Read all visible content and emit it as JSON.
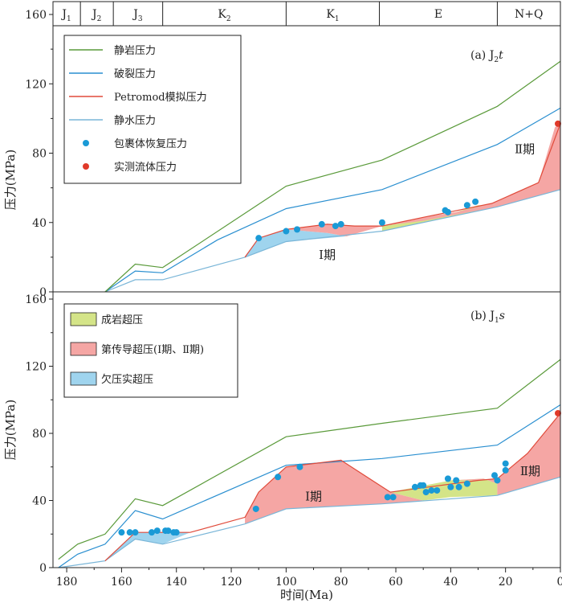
{
  "chart_data": {
    "type": "line",
    "x_axis": {
      "label": "时间(Ma)",
      "range": [
        185,
        0
      ],
      "ticks": [
        "180",
        "160",
        "140",
        "120",
        "100",
        "80",
        "60",
        "40",
        "20",
        "0"
      ],
      "reversed": true
    },
    "stratigraphy": [
      {
        "label": "J",
        "sub": "1",
        "from": 185,
        "to": 175
      },
      {
        "label": "J",
        "sub": "2",
        "from": 175,
        "to": 163
      },
      {
        "label": "J",
        "sub": "3",
        "from": 163,
        "to": 145
      },
      {
        "label": "K",
        "sub": "2",
        "from": 145,
        "to": 100
      },
      {
        "label": "K",
        "sub": "1",
        "from": 100,
        "to": 66
      },
      {
        "label": "E",
        "sub": "",
        "from": 66,
        "to": 23
      },
      {
        "label": "N+Q",
        "sub": "",
        "from": 23,
        "to": 0
      }
    ],
    "legend_top": [
      {
        "label": "静岩压力",
        "color": "#5a9a3a",
        "kind": "line"
      },
      {
        "label": "破裂压力",
        "color": "#2a8fd0",
        "kind": "line"
      },
      {
        "label": "Petromod模拟压力",
        "color": "#e04a3a",
        "kind": "line"
      },
      {
        "label": "静水压力",
        "color": "#7ab6d8",
        "kind": "line"
      },
      {
        "label": "包裹体恢复压力",
        "color": "#1a9ad6",
        "kind": "dot"
      },
      {
        "label": "实测流体压力",
        "color": "#e03a2a",
        "kind": "dot"
      }
    ],
    "legend_bottom": [
      {
        "label": "成岩超压",
        "color": "#d4e488"
      },
      {
        "label": "第传导超压(Ⅰ期、Ⅱ期)",
        "color": "#f5a6a4"
      },
      {
        "label": "欠压实超压",
        "color": "#9fd4ee"
      }
    ],
    "panels": [
      {
        "title": "(a) J",
        "title_sub": "2",
        "title_suffix": "t",
        "ylabel": "压力(MPa)",
        "ylim": [
          0,
          160
        ],
        "yticks": [
          "0",
          "40",
          "80",
          "120",
          "160"
        ],
        "region_labels": [
          {
            "text": "Ⅰ期",
            "x": 85,
            "y": 19
          },
          {
            "text": "Ⅱ期",
            "x": 13,
            "y": 80
          }
        ],
        "lithostatic": [
          [
            166,
            0
          ],
          [
            155,
            16
          ],
          [
            145,
            14
          ],
          [
            100,
            61
          ],
          [
            65,
            76
          ],
          [
            23,
            107
          ],
          [
            0,
            133
          ]
        ],
        "fracture": [
          [
            166,
            0
          ],
          [
            155,
            12
          ],
          [
            145,
            11
          ],
          [
            125,
            30
          ],
          [
            100,
            48
          ],
          [
            65,
            59
          ],
          [
            23,
            85
          ],
          [
            0,
            106
          ]
        ],
        "hydrostatic": [
          [
            166,
            0
          ],
          [
            155,
            7
          ],
          [
            145,
            7
          ],
          [
            115,
            20
          ],
          [
            100,
            29
          ],
          [
            65,
            35
          ],
          [
            23,
            49
          ],
          [
            0,
            59
          ]
        ],
        "petromod": [
          [
            115,
            20
          ],
          [
            110,
            31
          ],
          [
            100,
            36
          ],
          [
            85,
            39
          ],
          [
            75,
            38
          ],
          [
            65,
            38
          ],
          [
            50,
            43
          ],
          [
            25,
            51
          ],
          [
            8,
            63
          ],
          [
            0,
            97
          ]
        ],
        "areas": [
          {
            "kind": "undercompaction",
            "points": [
              [
                115,
                20
              ],
              [
                110,
                31
              ],
              [
                100,
                36
              ],
              [
                85,
                34
              ],
              [
                78,
                32
              ],
              [
                100,
                29
              ]
            ]
          },
          {
            "kind": "transmission",
            "points": [
              [
                110,
                31
              ],
              [
                100,
                36
              ],
              [
                85,
                39
              ],
              [
                75,
                38
              ],
              [
                65,
                38
              ],
              [
                78,
                32
              ],
              [
                85,
                34
              ],
              [
                100,
                36
              ]
            ]
          },
          {
            "kind": "diagenetic",
            "points": [
              [
                65,
                35
              ],
              [
                65,
                38
              ],
              [
                50,
                43
              ],
              [
                38,
                46
              ],
              [
                30,
                50
              ],
              [
                23,
                50
              ],
              [
                23,
                49
              ]
            ]
          },
          {
            "kind": "transmission",
            "points": [
              [
                65,
                38
              ],
              [
                50,
                43
              ],
              [
                38,
                46
              ],
              [
                30,
                49
              ],
              [
                25,
                51
              ],
              [
                23,
                49
              ],
              [
                50,
                41
              ]
            ]
          },
          {
            "kind": "transmission",
            "points": [
              [
                23,
                49
              ],
              [
                25,
                51
              ],
              [
                8,
                63
              ],
              [
                2,
                95
              ],
              [
                0,
                97
              ],
              [
                0,
                59
              ]
            ]
          }
        ],
        "inclusion": [
          [
            110,
            31
          ],
          [
            100,
            35
          ],
          [
            96,
            36
          ],
          [
            87,
            39
          ],
          [
            82,
            38
          ],
          [
            80,
            39
          ],
          [
            65,
            40
          ],
          [
            42,
            47
          ],
          [
            41,
            46
          ],
          [
            34,
            50
          ],
          [
            31,
            52
          ]
        ],
        "measured": [
          [
            0,
            97
          ]
        ]
      },
      {
        "title": "(b) J",
        "title_sub": "1",
        "title_suffix": "s",
        "ylabel": "压力(MPa)",
        "ylim": [
          0,
          160
        ],
        "yticks": [
          "0",
          "40",
          "80",
          "120",
          "160"
        ],
        "region_labels": [
          {
            "text": "Ⅰ期",
            "x": 90,
            "y": 40
          },
          {
            "text": "Ⅱ期",
            "x": 11,
            "y": 55
          }
        ],
        "lithostatic": [
          [
            183,
            5
          ],
          [
            176,
            14
          ],
          [
            166,
            20
          ],
          [
            155,
            41
          ],
          [
            145,
            37
          ],
          [
            100,
            78
          ],
          [
            65,
            86
          ],
          [
            23,
            95
          ],
          [
            0,
            124
          ]
        ],
        "fracture": [
          [
            183,
            0
          ],
          [
            176,
            8
          ],
          [
            166,
            14
          ],
          [
            155,
            34
          ],
          [
            145,
            29
          ],
          [
            100,
            61
          ],
          [
            65,
            65
          ],
          [
            23,
            73
          ],
          [
            0,
            97
          ]
        ],
        "hydrostatic": [
          [
            183,
            0
          ],
          [
            166,
            4
          ],
          [
            155,
            17
          ],
          [
            145,
            14
          ],
          [
            115,
            26
          ],
          [
            100,
            35
          ],
          [
            65,
            38
          ],
          [
            23,
            43
          ],
          [
            0,
            54
          ]
        ],
        "petromod": [
          [
            166,
            4
          ],
          [
            155,
            21
          ],
          [
            145,
            21
          ],
          [
            135,
            21
          ],
          [
            115,
            30
          ],
          [
            110,
            45
          ],
          [
            100,
            60
          ],
          [
            80,
            64
          ],
          [
            62,
            45
          ],
          [
            30,
            52
          ],
          [
            23,
            53
          ],
          [
            12,
            68
          ],
          [
            0,
            92
          ]
        ],
        "areas": [
          {
            "kind": "undercompaction",
            "points": [
              [
                166,
                4
              ],
              [
                155,
                21
              ],
              [
                145,
                21
              ],
              [
                135,
                21
              ],
              [
                145,
                14
              ],
              [
                155,
                17
              ]
            ]
          },
          {
            "kind": "transmission",
            "points": [
              [
                115,
                26
              ],
              [
                115,
                30
              ],
              [
                110,
                45
              ],
              [
                100,
                60
              ],
              [
                80,
                64
              ],
              [
                62,
                45
              ],
              [
                50,
                40
              ],
              [
                65,
                38
              ],
              [
                100,
                35
              ]
            ]
          },
          {
            "kind": "diagenetic",
            "points": [
              [
                62,
                45
              ],
              [
                40,
                52
              ],
              [
                28,
                53
              ],
              [
                23,
                50
              ],
              [
                23,
                43
              ],
              [
                40,
                42
              ],
              [
                50,
                40
              ]
            ]
          },
          {
            "kind": "transmission",
            "points": [
              [
                40,
                52
              ],
              [
                30,
                52
              ],
              [
                23,
                53
              ],
              [
                12,
                68
              ],
              [
                0,
                92
              ],
              [
                0,
                54
              ],
              [
                23,
                43
              ],
              [
                23,
                50
              ],
              [
                28,
                53
              ]
            ]
          }
        ],
        "inclusion": [
          [
            160,
            21
          ],
          [
            157,
            21
          ],
          [
            155,
            21
          ],
          [
            149,
            21
          ],
          [
            147,
            22
          ],
          [
            144,
            22
          ],
          [
            143,
            22
          ],
          [
            141,
            21
          ],
          [
            140,
            21
          ],
          [
            111,
            35
          ],
          [
            103,
            54
          ],
          [
            95,
            60
          ],
          [
            63,
            42
          ],
          [
            61,
            42
          ],
          [
            53,
            48
          ],
          [
            51,
            49
          ],
          [
            50,
            49
          ],
          [
            49,
            45
          ],
          [
            47,
            46
          ],
          [
            45,
            46
          ],
          [
            41,
            53
          ],
          [
            40,
            48
          ],
          [
            38,
            52
          ],
          [
            37,
            48
          ],
          [
            34,
            50
          ],
          [
            24,
            55
          ],
          [
            23,
            52
          ],
          [
            20,
            62
          ],
          [
            20,
            58
          ]
        ],
        "measured": [
          [
            0,
            92
          ]
        ]
      }
    ]
  }
}
